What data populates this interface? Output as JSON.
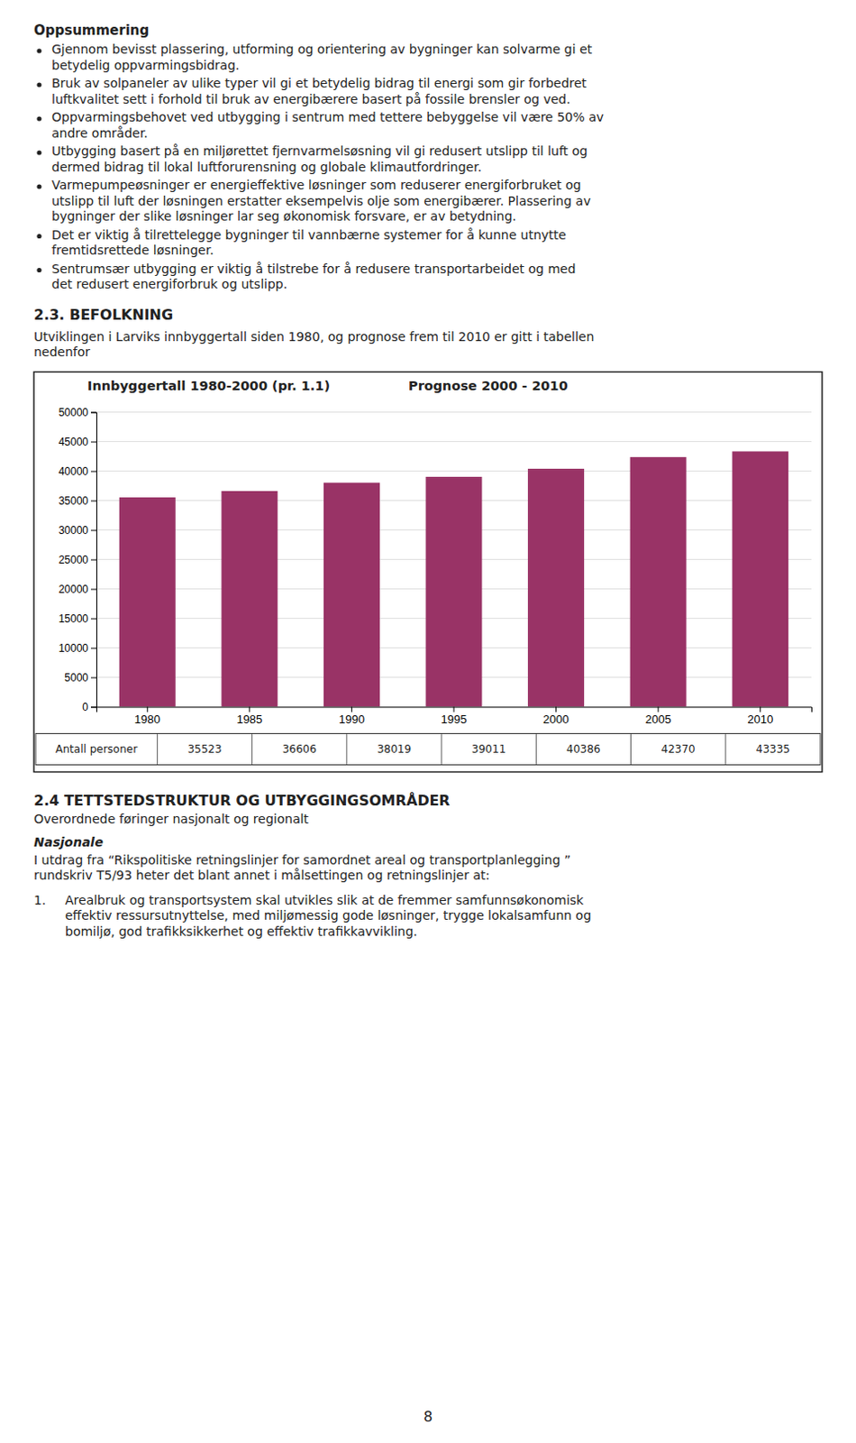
{
  "title_text": "Oppsummering",
  "bullet_lines": [
    [
      "Gjennom bevisst plassering, utforming og orientering av bygninger kan solvarme gi et",
      "betydelig oppvarmingsbidrag."
    ],
    [
      "Bruk av solpaneler av ulike typer vil gi et betydelig bidrag til energi som gir forbedret",
      "luftkvalitet sett i forhold til bruk av energibærere basert på fossile brensler og ved."
    ],
    [
      "Oppvarmingsbehovet ved utbygging i sentrum med tettere bebyggelse vil være 50% av",
      "andre områder."
    ],
    [
      "Utbygging basert på en miljørettet fjernvarmelsøsning vil gi redusert utslipp til luft og",
      "dermed bidrag til lokal luftforurensning og globale klimautfordringer."
    ],
    [
      "Varmepumpeøsninger er energieffektive løsninger som reduserer energiforbruket og",
      "utslipp til luft der løsningen erstatter eksempelvis olje som energibærer.  Plassering av",
      "bygninger der slike løsninger lar seg økonomisk forsvare, er av betydning."
    ],
    [
      "Det er viktig å tilrettelegge bygninger til vannbærne systemer for å kunne utnytte",
      "fremtidsrettede løsninger."
    ],
    [
      "Sentrumsær utbygging er viktig å tilstrebe for å redusere transportarbeidet og med",
      "det redusert energiforbruk og utslipp."
    ]
  ],
  "section_heading": "2.3.  BEFOLKNING",
  "section_intro_lines": [
    "Utviklingen i Larviks innbyggertall siden 1980, og prognose frem til 2010 er gitt i tabellen",
    "nedenfor"
  ],
  "chart_data": {
    "type": "bar",
    "title": "Innbyggertall 1980-2000 (pr. 1.1)",
    "subtitle": "Prognose 2000 - 2010",
    "categories": [
      "1980",
      "1985",
      "1990",
      "1995",
      "2000",
      "2005",
      "2010"
    ],
    "values": [
      35523,
      36606,
      38019,
      39011,
      40386,
      42370,
      43335
    ],
    "color": "#993366",
    "ylim": [
      0,
      50000
    ],
    "yticks": [
      0,
      5000,
      10000,
      15000,
      20000,
      25000,
      30000,
      35000,
      40000,
      45000,
      50000
    ],
    "grid": true,
    "table_label": "Antall personer"
  },
  "section2_heading": "2.4  TETTSTEDSTRUKTUR OG UTBYGGINGSOMRÅDER",
  "section2_sub": "Overordnede føringer nasjonalt og regionalt",
  "section2_bold": "Nasjonale",
  "section2_intro_lines": [
    "I utdrag fra “Rikspolitiske retningslinjer for samordnet areal og transportplanlegging ”",
    "rundskriv T5/93 heter det blant annet i målsettingen og retningslinjer at:"
  ],
  "item1_num": "1.",
  "item1_lines": [
    "Arealbruk og transportsystem skal utvikles slik at de fremmer samfunnsøkonomisk",
    "effektiv ressursutnyttelse, med miljømessig gode løsninger, trygge lokalsamfunn og",
    "bomiljø, god trafikksikkerhet og effektiv trafikkavvikling."
  ],
  "page_num": "8"
}
